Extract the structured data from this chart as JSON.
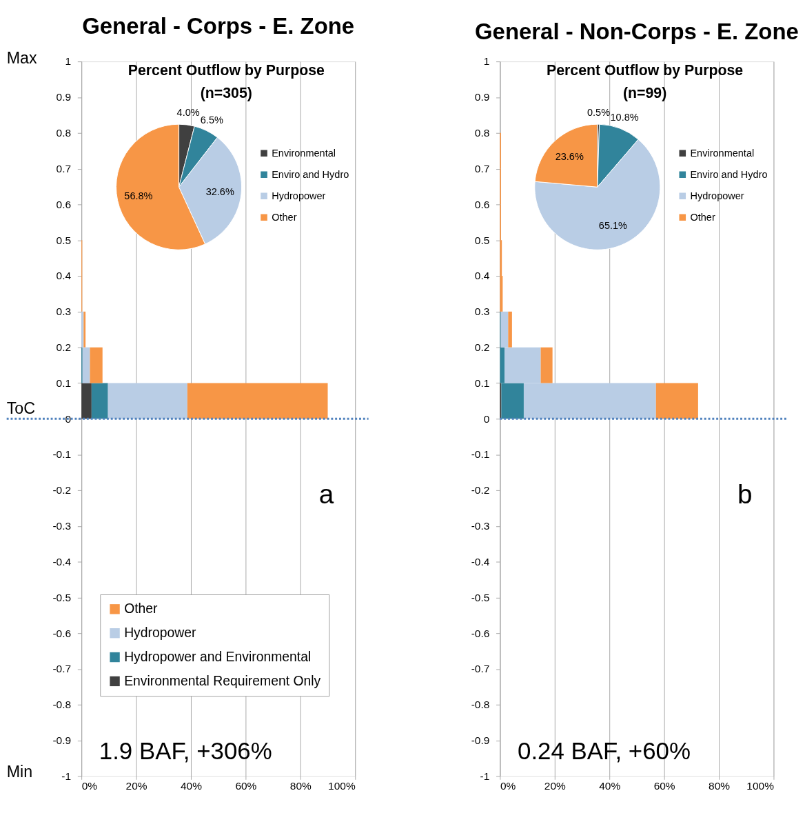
{
  "chart_data": [
    {
      "type": "bar",
      "orientation": "horizontal",
      "stacked": true,
      "title": "General - Corps - E. Zone",
      "x": [
        0.05,
        0.15,
        0.25,
        0.35,
        0.45
      ],
      "series": [
        {
          "name": "Environmental Requirement Only",
          "color": "#404040",
          "values": [
            3.7,
            0,
            0,
            0,
            0
          ]
        },
        {
          "name": "Hydropower and Environmental",
          "color": "#31849b",
          "values": [
            6.0,
            0.4,
            0,
            0,
            0
          ]
        },
        {
          "name": "Hydropower",
          "color": "#b9cde5",
          "values": [
            29.0,
            2.7,
            0.8,
            null,
            0
          ]
        },
        {
          "name": "Other",
          "color": "#f79646",
          "values": [
            51.3,
            4.6,
            0.7,
            0.3,
            0.3
          ]
        }
      ],
      "xlim": [
        0,
        100
      ],
      "xticks": [
        {
          "value": 0,
          "label": "0%"
        },
        {
          "value": 20,
          "label": "20%"
        },
        {
          "value": 40,
          "label": "40%"
        },
        {
          "value": 60,
          "label": "60%"
        },
        {
          "value": 80,
          "label": "80%"
        },
        {
          "value": 100,
          "label": "100%"
        }
      ],
      "ylim": [
        -1,
        1
      ],
      "yticks": [
        1,
        0.9,
        0.8,
        0.7,
        0.6,
        0.5,
        0.4,
        0.3,
        0.2,
        0.1,
        0,
        -0.1,
        -0.2,
        -0.3,
        -0.4,
        -0.5,
        -0.6,
        -0.7,
        -0.8,
        -0.9,
        -1
      ],
      "grid": "x",
      "legend": "bottom left",
      "ref_lines": [
        {
          "axis": "y",
          "value": 0,
          "label": "ToC",
          "color": "#4f81bd",
          "line_style": "dotted"
        }
      ],
      "annotations": [
        "a",
        "1.9 BAF, +306%",
        "Max",
        "Min"
      ]
    },
    {
      "type": "pie",
      "title": "Percent Outflow by Purpose (n=305)",
      "categories": [
        "Environmental",
        "Enviro and Hydro",
        "Hydropower",
        "Other"
      ],
      "values": [
        4.0,
        6.5,
        32.6,
        56.8
      ],
      "colors": [
        "#404040",
        "#31849b",
        "#b9cde5",
        "#f79646"
      ],
      "value_labels": [
        "4.0%",
        "6.5%",
        "32.6%",
        "56.8%"
      ],
      "legend": "right"
    },
    {
      "type": "bar",
      "orientation": "horizontal",
      "stacked": true,
      "title": "General - Non-Corps - E. Zone",
      "x": [
        0.05,
        0.15,
        0.25,
        0.35,
        0.45,
        0.55,
        0.65,
        0.75
      ],
      "series": [
        {
          "color": "#404040",
          "values": [
            0.5,
            0,
            0,
            0,
            0,
            0,
            0,
            0
          ]
        },
        {
          "color": "#31849b",
          "values": [
            8.2,
            1.7,
            0.3,
            0,
            0,
            0,
            0,
            0
          ]
        },
        {
          "color": "#b9cde5",
          "values": [
            48.3,
            13.2,
            2.7,
            null,
            0,
            0,
            0,
            0
          ]
        },
        {
          "color": "#f79646",
          "values": [
            15.4,
            4.3,
            1.4,
            1.0,
            0.7,
            0.4,
            0.4,
            0.4
          ]
        }
      ],
      "xlim": [
        0,
        100
      ],
      "xticks": [
        {
          "value": 0,
          "label": "0%"
        },
        {
          "value": 20,
          "label": "20%"
        },
        {
          "value": 40,
          "label": "40%"
        },
        {
          "value": 60,
          "label": "60%"
        },
        {
          "value": 80,
          "label": "80%"
        },
        {
          "value": 100,
          "label": "100%"
        }
      ],
      "ylim": [
        -1,
        1
      ],
      "yticks": [
        1,
        0.9,
        0.8,
        0.7,
        0.6,
        0.5,
        0.4,
        0.3,
        0.2,
        0.1,
        0,
        -0.1,
        -0.2,
        -0.3,
        -0.4,
        -0.5,
        -0.6,
        -0.7,
        -0.8,
        -0.9,
        -1
      ],
      "grid": "x",
      "ref_lines": [
        {
          "axis": "y",
          "value": 0,
          "color": "#4f81bd",
          "line_style": "dotted"
        }
      ],
      "annotations": [
        "b",
        "0.24 BAF, +60%"
      ]
    },
    {
      "type": "pie",
      "title": "Percent Outflow by Purpose (n=99)",
      "categories": [
        "Environmental",
        "Enviro and Hydro",
        "Hydropower",
        "Other"
      ],
      "values": [
        0.5,
        10.8,
        65.1,
        23.6
      ],
      "colors": [
        "#404040",
        "#31849b",
        "#b9cde5",
        "#f79646"
      ],
      "value_labels": [
        "0.5%",
        "10.8%",
        "65.1%",
        "23.6%"
      ],
      "legend": "right"
    }
  ]
}
